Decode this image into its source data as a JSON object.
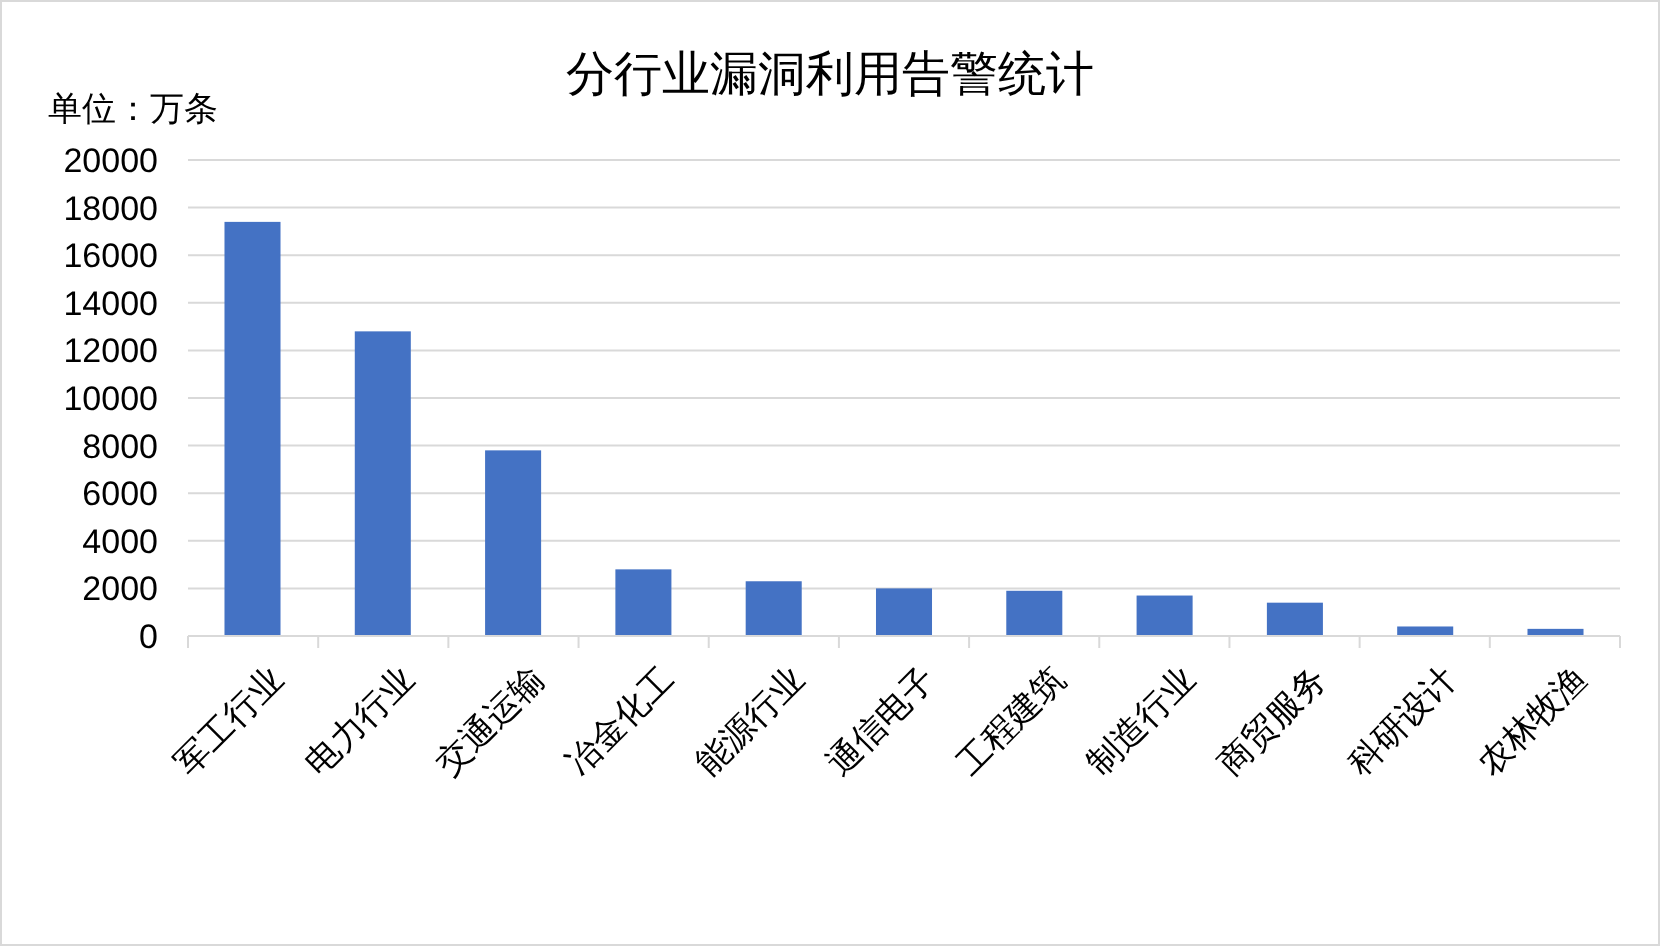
{
  "chart_data": {
    "type": "bar",
    "title": "分行业漏洞利用告警统计",
    "ylabel": "单位：万条",
    "categories": [
      "军工行业",
      "电力行业",
      "交通运输",
      "冶金化工",
      "能源行业",
      "通信电子",
      "工程建筑",
      "制造行业",
      "商贸服务",
      "科研设计",
      "农林牧渔"
    ],
    "values": [
      17400,
      12800,
      7800,
      2800,
      2300,
      2000,
      1900,
      1700,
      1400,
      400,
      300
    ],
    "color": "#4472c4",
    "ylim": [
      0,
      20000
    ],
    "yticks": [
      0,
      2000,
      4000,
      6000,
      8000,
      10000,
      12000,
      14000,
      16000,
      18000,
      20000
    ],
    "grid": "y"
  }
}
